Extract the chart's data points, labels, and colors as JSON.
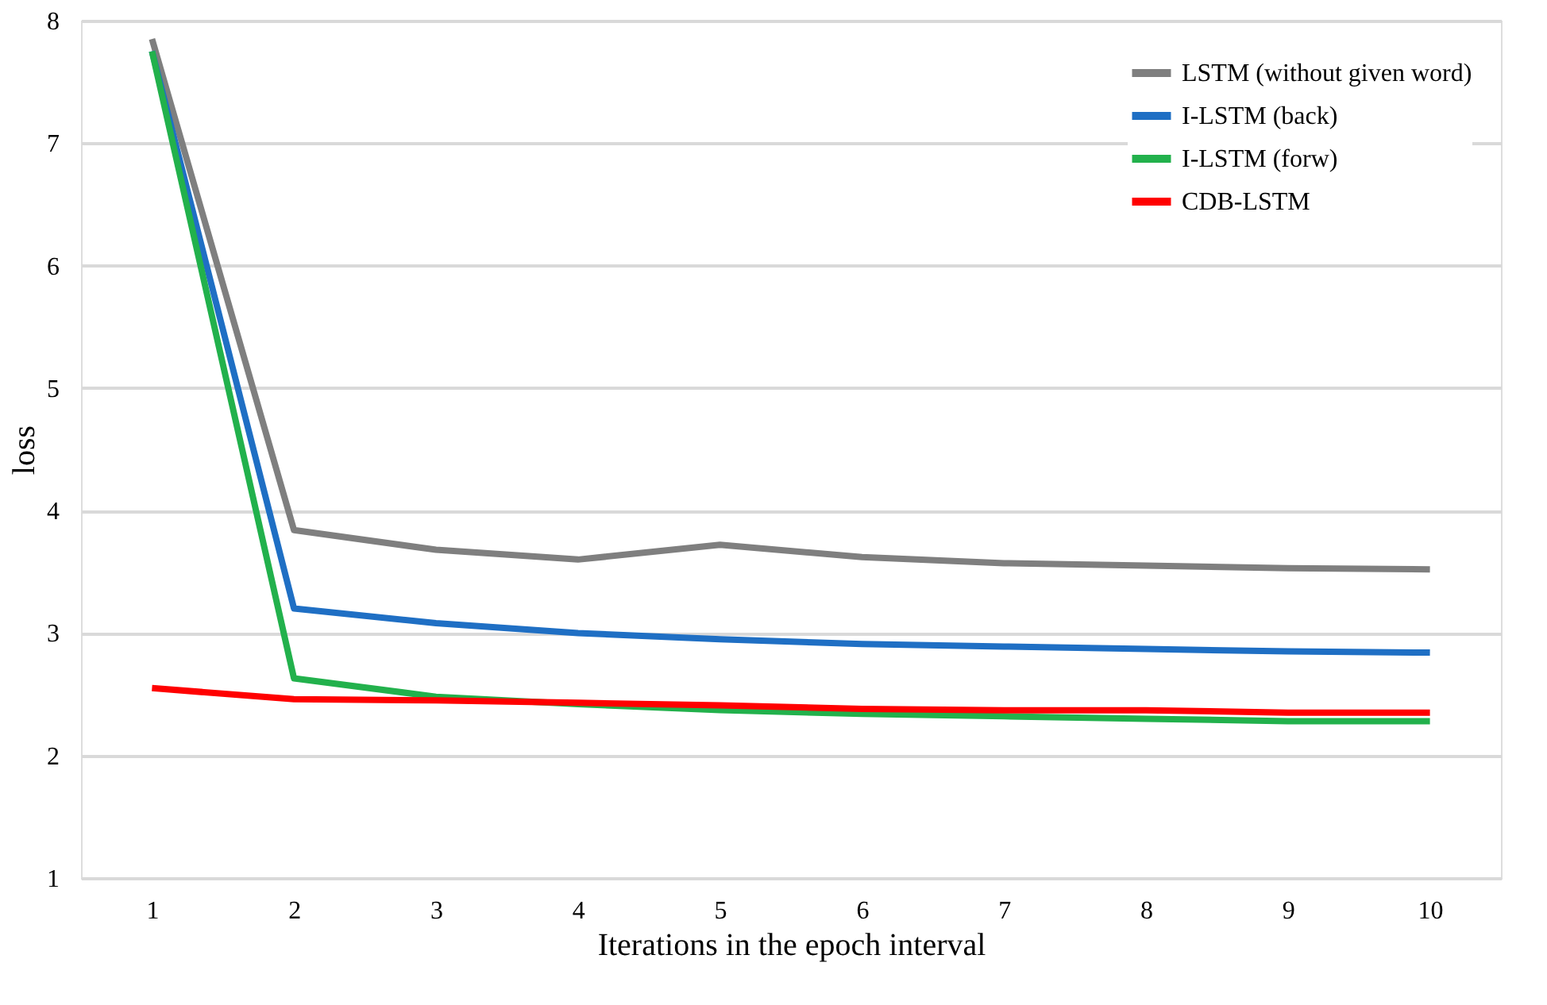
{
  "chart_data": {
    "type": "line",
    "xlabel": "Iterations in the epoch interval",
    "ylabel": "loss",
    "categories": [
      "1",
      "2",
      "3",
      "4",
      "5",
      "6",
      "7",
      "8",
      "9",
      "10"
    ],
    "series": [
      {
        "name": "LSTM (without given word)",
        "color": "#7f7f7f",
        "values": [
          7.85,
          3.84,
          3.68,
          3.6,
          3.72,
          3.62,
          3.57,
          3.55,
          3.53,
          3.52
        ]
      },
      {
        "name": "I-LSTM (back)",
        "color": "#1f6fc4",
        "values": [
          7.75,
          3.2,
          3.08,
          3.0,
          2.95,
          2.91,
          2.89,
          2.87,
          2.85,
          2.84
        ]
      },
      {
        "name": "I-LSTM (forw)",
        "color": "#22b14c",
        "values": [
          7.75,
          2.63,
          2.48,
          2.42,
          2.37,
          2.34,
          2.32,
          2.3,
          2.28,
          2.28
        ]
      },
      {
        "name": "CDB-LSTM",
        "color": "#ff0000",
        "values": [
          2.55,
          2.46,
          2.45,
          2.43,
          2.41,
          2.38,
          2.37,
          2.37,
          2.35,
          2.35
        ]
      }
    ],
    "ylim": [
      1,
      8
    ],
    "yticks": [
      1,
      2,
      3,
      4,
      5,
      6,
      7,
      8
    ],
    "grid": "y",
    "legend": "top right",
    "marker": "none",
    "line_style": "solid"
  }
}
